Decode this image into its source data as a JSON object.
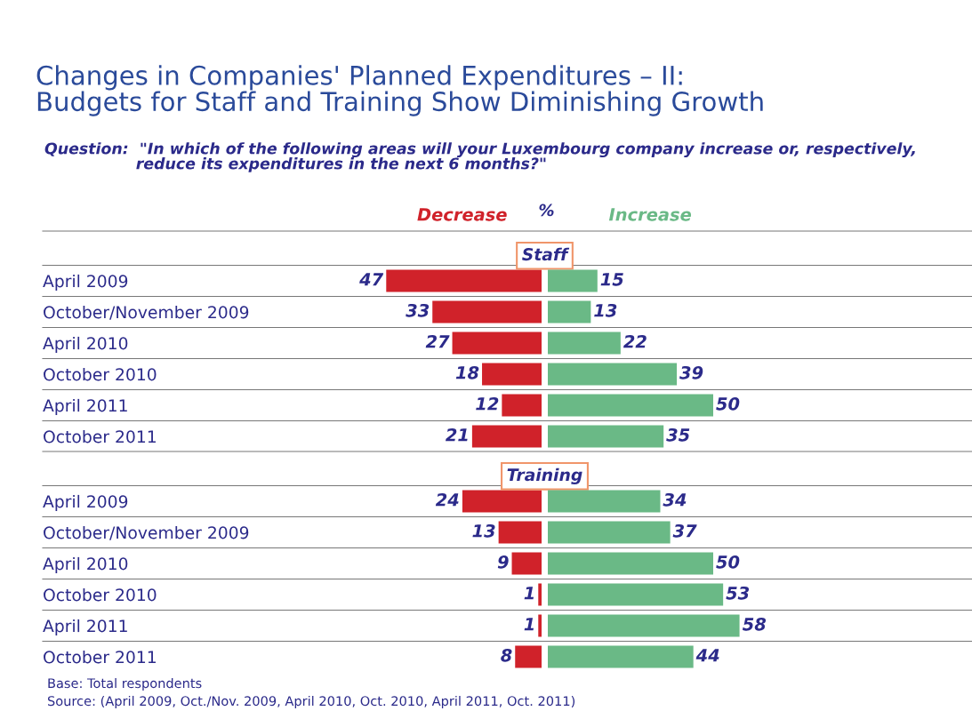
{
  "chart_data": [
    {
      "type": "other",
      "title": "Changes in Companies' Planned Expenditures – II:\nBudgets for Staff and Training Show Diminishing Growth",
      "subtitle": "Question:  \"In which of the following areas will your Luxembourg company increase or, respectively,\n                 reduce its expenditures in the next 6 months?\""
    },
    {
      "type": "bar",
      "orientation": "horizontal",
      "title": "Staff",
      "categories": [
        "April 2009",
        "October/November 2009",
        "April 2010",
        "October 2010",
        "April 2011",
        "October 2011"
      ],
      "series": [
        {
          "name": "Decrease",
          "color": "#d0222a",
          "values": [
            47,
            33,
            27,
            18,
            12,
            21
          ]
        }
      ],
      "xlim": [
        47,
        0
      ],
      "data_labels": true,
      "grid": "y",
      "annotations": [
        "%"
      ]
    },
    {
      "type": "bar",
      "orientation": "horizontal",
      "categories": [
        null,
        null,
        null,
        null,
        null,
        null
      ],
      "series": [
        {
          "name": "Increase",
          "color": "#6ab986",
          "values": [
            15,
            13,
            22,
            39,
            50,
            35
          ]
        }
      ],
      "xlim": [
        0,
        50
      ],
      "data_labels": true
    },
    {
      "type": "bar",
      "orientation": "horizontal",
      "title": "Training",
      "categories": [
        "April 2009",
        "October/November 2009",
        "April 2010",
        "October 2010",
        "April 2011",
        "October 2011"
      ],
      "series": [
        {
          "color": "#d0222a",
          "values": [
            24,
            13,
            9,
            1,
            1,
            8
          ]
        }
      ],
      "xlim": [
        24,
        0
      ],
      "data_labels": true,
      "grid": "y",
      "annotations": [
        "Base: Total respondents",
        "Source: (April 2009, Oct./Nov. 2009, April 2010, Oct. 2010, April 2011, Oct. 2011)"
      ]
    },
    {
      "type": "bar",
      "orientation": "horizontal",
      "categories": [
        null,
        null,
        null,
        null,
        null,
        null
      ],
      "series": [
        {
          "color": "#6ab986",
          "values": [
            34,
            37,
            50,
            53,
            58,
            44
          ]
        }
      ],
      "xlim": [
        0,
        58
      ],
      "data_labels": true
    }
  ]
}
